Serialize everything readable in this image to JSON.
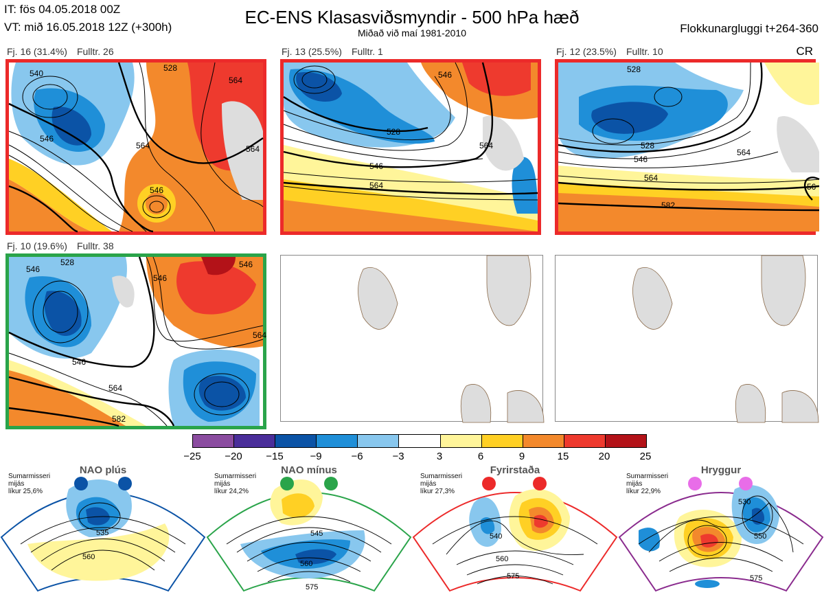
{
  "header": {
    "init_time": "IT: fös 04.05.2018 00Z",
    "valid_time": "VT: mið 16.05.2018 12Z  (+300h)",
    "title": "EC-ENS Klasasviðsmyndir - 500 hPa hæð",
    "subtitle": "Miðað við maí 1981-2010",
    "window": "Flokkunargluggi t+264-360",
    "cr": "CR"
  },
  "panels": [
    {
      "count": "Fj. 16 (31.4%)",
      "rep": "Fulltr. 26",
      "border": "red",
      "contours": [
        "540",
        "528",
        "546",
        "564",
        "564",
        "546",
        "564"
      ]
    },
    {
      "count": "Fj. 13 (25.5%)",
      "rep": "Fulltr. 1",
      "border": "red",
      "contours": [
        "546",
        "528",
        "546",
        "564",
        "564"
      ]
    },
    {
      "count": "Fj. 12 (23.5%)",
      "rep": "Fulltr. 10",
      "border": "red",
      "contours": [
        "528",
        "528",
        "546",
        "564",
        "564",
        "582",
        "56"
      ]
    },
    {
      "count": "Fj. 10 (19.6%)",
      "rep": "Fulltr. 38",
      "border": "green",
      "contours": [
        "546",
        "528",
        "546",
        "546",
        "564",
        "582",
        "546",
        "564"
      ]
    }
  ],
  "colorbar": {
    "colors": [
      "#8b4ca0",
      "#4a2e9a",
      "#0b53a6",
      "#1f8fd8",
      "#88c7ee",
      "#ffffff",
      "#fff59a",
      "#ffd024",
      "#f3892c",
      "#ee3a2e",
      "#b31218"
    ],
    "ticks": [
      "−25",
      "−20",
      "−15",
      "−9",
      "−6",
      "−3",
      "3",
      "6",
      "9",
      "15",
      "20",
      "25"
    ]
  },
  "regimes": [
    {
      "name": "NAO plús",
      "season": "Sumarmisseri",
      "measure": "mijás",
      "prob": "líkur 25,6%",
      "color": "#0b53a6",
      "labels": [
        "535",
        "560"
      ]
    },
    {
      "name": "NAO mínus",
      "season": "Sumarmisseri",
      "measure": "mijás",
      "prob": "líkur 24,2%",
      "color": "#2aa44a",
      "labels": [
        "545",
        "560",
        "575"
      ]
    },
    {
      "name": "Fyrirstaða",
      "season": "Sumarmisseri",
      "measure": "mijás",
      "prob": "líkur 27,3%",
      "color": "#ec2a2a",
      "labels": [
        "540",
        "560",
        "575"
      ]
    },
    {
      "name": "Hryggur",
      "season": "Sumarmisseri",
      "measure": "mijás",
      "prob": "líkur 22,9%",
      "color": "#8a2b8e",
      "labels": [
        "530",
        "550",
        "575"
      ]
    }
  ]
}
